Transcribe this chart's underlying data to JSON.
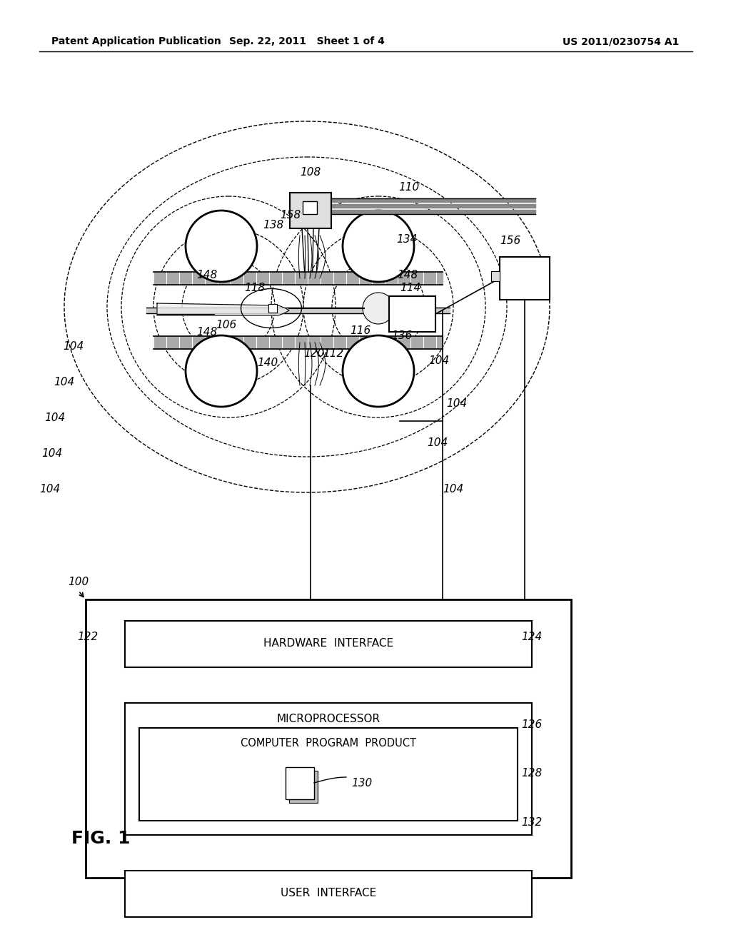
{
  "bg_color": "#ffffff",
  "line_color": "#000000",
  "header_left": "Patent Application Publication",
  "header_mid": "Sep. 22, 2011   Sheet 1 of 4",
  "header_right": "US 2011/0230754 A1"
}
